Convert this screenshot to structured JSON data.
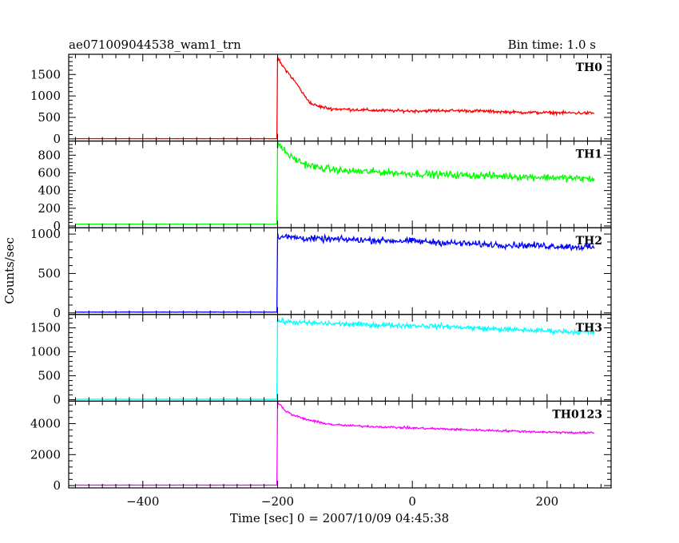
{
  "header": {
    "left_title": "ae071009044538_wam1_trn",
    "right_title": "Bin time: 1.0 s"
  },
  "chart_data": {
    "type": "line",
    "title": "ae071009044538_wam1_trn",
    "subtitle": "Bin time: 1.0 s",
    "xlabel": "Time [sec] 0 = 2007/10/09 04:45:38",
    "ylabel": "Counts/sec",
    "xlim": [
      -510,
      295
    ],
    "x_ticks": [
      -400,
      -200,
      0,
      200
    ],
    "x_tick_labels": [
      "−400",
      "−200",
      "0",
      "200"
    ],
    "trigger_time": -200,
    "data_range": [
      -500,
      270
    ],
    "panels": [
      {
        "name": "TH0",
        "color": "#ff0000",
        "ylim": [
          -50,
          1970
        ],
        "y_ticks": [
          0,
          500,
          1000,
          1500
        ],
        "y_tick_labels": [
          "0",
          "500",
          "1000",
          "1500"
        ],
        "points": [
          [
            -500,
            5
          ],
          [
            -201,
            5
          ],
          [
            -200,
            1900
          ],
          [
            -195,
            1750
          ],
          [
            -180,
            1450
          ],
          [
            -170,
            1250
          ],
          [
            -160,
            1000
          ],
          [
            -150,
            820
          ],
          [
            -140,
            760
          ],
          [
            -120,
            700
          ],
          [
            -100,
            690
          ],
          [
            -50,
            660
          ],
          [
            0,
            650
          ],
          [
            50,
            660
          ],
          [
            100,
            650
          ],
          [
            150,
            620
          ],
          [
            200,
            610
          ],
          [
            270,
            600
          ]
        ],
        "noise": 30
      },
      {
        "name": "TH1",
        "color": "#00ff00",
        "ylim": [
          -20,
          960
        ],
        "y_ticks": [
          0,
          200,
          400,
          600,
          800
        ],
        "y_tick_labels": [
          "0",
          "200",
          "400",
          "600",
          "800"
        ],
        "points": [
          [
            -500,
            20
          ],
          [
            -201,
            20
          ],
          [
            -200,
            940
          ],
          [
            -190,
            850
          ],
          [
            -180,
            780
          ],
          [
            -160,
            700
          ],
          [
            -140,
            660
          ],
          [
            -100,
            620
          ],
          [
            -50,
            610
          ],
          [
            0,
            590
          ],
          [
            50,
            580
          ],
          [
            100,
            570
          ],
          [
            150,
            560
          ],
          [
            200,
            550
          ],
          [
            270,
            530
          ]
        ],
        "noise": 35
      },
      {
        "name": "TH2",
        "color": "#0000ff",
        "ylim": [
          -20,
          1080
        ],
        "y_ticks": [
          0,
          500,
          1000
        ],
        "y_tick_labels": [
          "0",
          "500",
          "1000"
        ],
        "points": [
          [
            -500,
            10
          ],
          [
            -201,
            10
          ],
          [
            -200,
            970
          ],
          [
            -180,
            960
          ],
          [
            -150,
            940
          ],
          [
            -100,
            930
          ],
          [
            -50,
            920
          ],
          [
            0,
            910
          ],
          [
            50,
            890
          ],
          [
            100,
            870
          ],
          [
            150,
            860
          ],
          [
            200,
            850
          ],
          [
            270,
            830
          ]
        ],
        "noise": 35
      },
      {
        "name": "TH3",
        "color": "#00ffff",
        "ylim": [
          -30,
          1780
        ],
        "y_ticks": [
          0,
          500,
          1000,
          1500
        ],
        "y_tick_labels": [
          "0",
          "500",
          "1000",
          "1500"
        ],
        "points": [
          [
            -500,
            10
          ],
          [
            -201,
            10
          ],
          [
            -200,
            1650
          ],
          [
            -180,
            1620
          ],
          [
            -150,
            1600
          ],
          [
            -100,
            1580
          ],
          [
            -50,
            1560
          ],
          [
            0,
            1550
          ],
          [
            50,
            1530
          ],
          [
            100,
            1490
          ],
          [
            150,
            1460
          ],
          [
            200,
            1440
          ],
          [
            270,
            1400
          ]
        ],
        "noise": 45
      },
      {
        "name": "TH0123",
        "color": "#ff00ff",
        "ylim": [
          -150,
          5450
        ],
        "y_ticks": [
          0,
          2000,
          4000
        ],
        "y_tick_labels": [
          "0",
          "2000",
          "4000"
        ],
        "points": [
          [
            -500,
            30
          ],
          [
            -201,
            30
          ],
          [
            -200,
            5400
          ],
          [
            -190,
            4900
          ],
          [
            -180,
            4600
          ],
          [
            -160,
            4300
          ],
          [
            -140,
            4100
          ],
          [
            -120,
            3950
          ],
          [
            -100,
            3880
          ],
          [
            -50,
            3800
          ],
          [
            0,
            3720
          ],
          [
            50,
            3650
          ],
          [
            100,
            3580
          ],
          [
            150,
            3520
          ],
          [
            200,
            3450
          ],
          [
            270,
            3400
          ]
        ],
        "noise": 60
      }
    ]
  }
}
